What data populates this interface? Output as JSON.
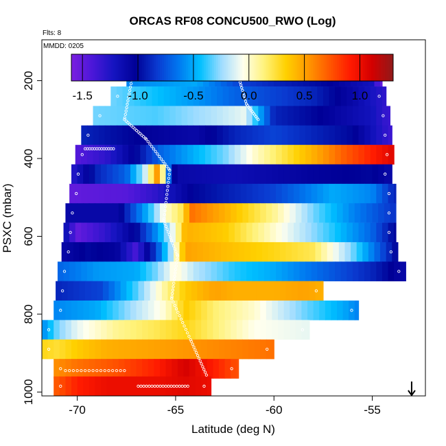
{
  "chart_data": {
    "type": "heatmap",
    "title": "ORCAS RF08 CONCU500_RWO (Log)",
    "flights_note": "Flts: 8",
    "date_note": "MMDD: 0205",
    "xlabel": "Latitude (deg N)",
    "ylabel": "PSXC (mbar)",
    "xlim": [
      -71.8,
      -52.3
    ],
    "ylim": [
      1010,
      95
    ],
    "y_reversed": true,
    "x_ticks": [
      -70,
      -65,
      -60,
      -55
    ],
    "x_tick_labels": [
      "-70",
      "-65",
      "-60",
      "-55"
    ],
    "y_ticks": [
      200,
      400,
      600,
      800,
      1000
    ],
    "y_tick_labels": [
      "200",
      "400",
      "600",
      "800",
      "1000"
    ],
    "colorbar": {
      "range": [
        -1.6,
        1.3
      ],
      "ticks": [
        -1.5,
        -1.0,
        -0.5,
        0.0,
        0.5,
        1.0
      ],
      "tick_labels": [
        "-1.5",
        "-1.0",
        "-0.5",
        "0.0",
        "0.5",
        "1.0"
      ],
      "colors": [
        "#7b1fe0",
        "#4a17d8",
        "#1414c0",
        "#000096",
        "#0a3ad0",
        "#0078f0",
        "#00c0ff",
        "#9fdcff",
        "#ffffee",
        "#fff27a",
        "#ffd000",
        "#ff9a00",
        "#ff5a00",
        "#ff1a00",
        "#d40000",
        "#901a1a"
      ]
    },
    "arrow_marker": {
      "x": -53.0,
      "direction": "down"
    },
    "bands": [
      {
        "p": 190,
        "xmin": -67.5,
        "xmax": -54.5,
        "stops": [
          [
            -67.5,
            -0.6
          ],
          [
            -64,
            -0.5
          ],
          [
            -61.8,
            -0.8
          ],
          [
            -60,
            -0.9
          ],
          [
            -57.5,
            -1.0
          ],
          [
            -55,
            -1.2
          ],
          [
            -54.6,
            -1.5
          ]
        ]
      },
      {
        "p": 240,
        "xmin": -68.3,
        "xmax": -54.3,
        "stops": [
          [
            -68.3,
            -0.3
          ],
          [
            -64,
            -0.55
          ],
          [
            -62,
            -0.7
          ],
          [
            -60,
            -0.8
          ],
          [
            -58,
            -0.9
          ],
          [
            -56,
            -1.1
          ],
          [
            -54.4,
            -1.3
          ]
        ]
      },
      {
        "p": 290,
        "xmin": -69.2,
        "xmax": -54.1,
        "stops": [
          [
            -69.2,
            -0.3
          ],
          [
            -66,
            -0.35
          ],
          [
            -63,
            -0.2
          ],
          [
            -61.5,
            -0.1
          ],
          [
            -60,
            -0.9
          ],
          [
            -58,
            -1.0
          ],
          [
            -55,
            -1.2
          ],
          [
            -54.2,
            -1.35
          ]
        ]
      },
      {
        "p": 340,
        "xmin": -69.8,
        "xmax": -54.0,
        "stops": [
          [
            -69.8,
            -0.9
          ],
          [
            -67.5,
            -1.0
          ],
          [
            -66,
            -1.05
          ],
          [
            -64,
            -1.1
          ],
          [
            -62,
            -0.9
          ],
          [
            -60,
            -0.8
          ],
          [
            -58,
            -0.9
          ],
          [
            -56,
            -1.0
          ],
          [
            -54.1,
            -1.35
          ]
        ]
      },
      {
        "p": 390,
        "xmin": -70.1,
        "xmax": -53.9,
        "stops": [
          [
            -70.1,
            -1.45
          ],
          [
            -68.5,
            -1.3
          ],
          [
            -67,
            -1.0
          ],
          [
            -65.8,
            -0.7
          ],
          [
            -64.2,
            -0.5
          ],
          [
            -62.5,
            -0.3
          ],
          [
            -61,
            0.0
          ],
          [
            -60,
            0.15
          ],
          [
            -58,
            0.45
          ],
          [
            -56.5,
            0.7
          ],
          [
            -55,
            0.9
          ],
          [
            -54,
            1.05
          ]
        ]
      },
      {
        "p": 440,
        "xmin": -70.3,
        "xmax": -54.0,
        "stops": [
          [
            -70.3,
            -1.3
          ],
          [
            -69,
            -0.9
          ],
          [
            -67.5,
            -0.7
          ],
          [
            -66.6,
            -0.2
          ],
          [
            -66.2,
            0.2
          ],
          [
            -65.8,
            0.7
          ],
          [
            -65.5,
            -0.5
          ],
          [
            -65,
            -1.1
          ],
          [
            -62,
            -1.15
          ],
          [
            -58,
            -1.05
          ],
          [
            -55,
            -1.0
          ],
          [
            -54.1,
            -1.1
          ]
        ]
      },
      {
        "p": 490,
        "xmin": -70.4,
        "xmax": -53.8,
        "stops": [
          [
            -70.4,
            -1.5
          ],
          [
            -67.5,
            -1.45
          ],
          [
            -66,
            -1.3
          ],
          [
            -64,
            -1.0
          ],
          [
            -60,
            -0.8
          ],
          [
            -57,
            -0.5
          ],
          [
            -55,
            -0.6
          ],
          [
            -53.9,
            -0.9
          ]
        ]
      },
      {
        "p": 540,
        "xmin": -70.6,
        "xmax": -53.8,
        "stops": [
          [
            -70.6,
            -1.1
          ],
          [
            -68,
            -1.1
          ],
          [
            -66.5,
            -0.5
          ],
          [
            -65.5,
            0.0
          ],
          [
            -64.7,
            0.2
          ],
          [
            -64.2,
            0.65
          ],
          [
            -62.5,
            0.45
          ],
          [
            -60,
            0.1
          ],
          [
            -58,
            -0.3
          ],
          [
            -56,
            -0.6
          ],
          [
            -53.9,
            -0.85
          ]
        ]
      },
      {
        "p": 590,
        "xmin": -70.7,
        "xmax": -53.8,
        "stops": [
          [
            -70.7,
            -1.1
          ],
          [
            -70,
            -1.5
          ],
          [
            -68.5,
            -1.3
          ],
          [
            -67,
            -1.0
          ],
          [
            -65.8,
            -0.5
          ],
          [
            -65,
            0.0
          ],
          [
            -64.5,
            0.45
          ],
          [
            -62.5,
            0.35
          ],
          [
            -60,
            0.0
          ],
          [
            -57,
            -0.4
          ],
          [
            -55,
            -0.7
          ],
          [
            -53.9,
            -1.0
          ]
        ]
      },
      {
        "p": 640,
        "xmin": -70.8,
        "xmax": -53.7,
        "stops": [
          [
            -70.8,
            -1.1
          ],
          [
            -69.5,
            -1.0
          ],
          [
            -68,
            -1.05
          ],
          [
            -67,
            -1.4
          ],
          [
            -66,
            -0.8
          ],
          [
            -65.2,
            -0.2
          ],
          [
            -64.5,
            0.5
          ],
          [
            -62.5,
            0.4
          ],
          [
            -60,
            0.3
          ],
          [
            -58,
            0.2
          ],
          [
            -56,
            -0.3
          ],
          [
            -53.8,
            -1.0
          ]
        ]
      },
      {
        "p": 690,
        "xmin": -71.0,
        "xmax": -53.3,
        "stops": [
          [
            -71.0,
            -0.7
          ],
          [
            -69,
            -0.55
          ],
          [
            -67,
            -0.5
          ],
          [
            -66,
            -0.3
          ],
          [
            -65,
            0.0
          ],
          [
            -64,
            -0.2
          ],
          [
            -62,
            -0.4
          ],
          [
            -60,
            -0.5
          ],
          [
            -57.5,
            -0.7
          ],
          [
            -55,
            -0.9
          ],
          [
            -53.4,
            -1.1
          ]
        ]
      },
      {
        "p": 740,
        "xmin": -71.1,
        "xmax": -57.5,
        "stops": [
          [
            -71.1,
            -0.9
          ],
          [
            -68.8,
            -0.8
          ],
          [
            -67,
            -0.35
          ],
          [
            -65.5,
            0.1
          ],
          [
            -64.5,
            0.35
          ],
          [
            -63,
            0.5
          ],
          [
            -62,
            0.45
          ],
          [
            -60,
            0.45
          ],
          [
            -58.5,
            0.5
          ],
          [
            -57.6,
            0.45
          ]
        ]
      },
      {
        "p": 790,
        "xmin": -71.2,
        "xmax": -55.7,
        "stops": [
          [
            -71.2,
            -0.6
          ],
          [
            -69,
            -0.5
          ],
          [
            -67,
            -0.2
          ],
          [
            -65.5,
            0.0
          ],
          [
            -64.5,
            0.35
          ],
          [
            -63,
            0.15
          ],
          [
            -61,
            0.0
          ],
          [
            -58.5,
            -0.3
          ],
          [
            -56.5,
            -0.5
          ],
          [
            -55.8,
            -0.6
          ]
        ]
      },
      {
        "p": 840,
        "xmin": -71.8,
        "xmax": -58.2,
        "stops": [
          [
            -71.8,
            -0.6
          ],
          [
            -71,
            -0.3
          ],
          [
            -70,
            -0.1
          ],
          [
            -68,
            0.1
          ],
          [
            -66,
            0.2
          ],
          [
            -64.5,
            0.3
          ],
          [
            -63,
            0.15
          ],
          [
            -61,
            -0.05
          ],
          [
            -58.3,
            -0.1
          ]
        ]
      },
      {
        "p": 890,
        "xmin": -71.8,
        "xmax": -60.0,
        "stops": [
          [
            -71.8,
            0.3
          ],
          [
            -71,
            0.25
          ],
          [
            -70,
            0.35
          ],
          [
            -68.5,
            0.45
          ],
          [
            -66,
            0.5
          ],
          [
            -64,
            0.55
          ],
          [
            -62,
            0.6
          ],
          [
            -60.1,
            0.65
          ]
        ]
      },
      {
        "p": 940,
        "xmin": -71.2,
        "xmax": -61.8,
        "stops": [
          [
            -71.2,
            0.55
          ],
          [
            -70,
            0.65
          ],
          [
            -68,
            0.75
          ],
          [
            -66,
            0.9
          ],
          [
            -64.5,
            1.1
          ],
          [
            -63,
            0.9
          ],
          [
            -61.9,
            0.75
          ]
        ]
      },
      {
        "p": 985,
        "xmin": -71.2,
        "xmax": -63.2,
        "stops": [
          [
            -71.2,
            0.7
          ],
          [
            -70,
            0.9
          ],
          [
            -68.5,
            1.0
          ],
          [
            -66,
            1.0
          ],
          [
            -64.5,
            1.05
          ],
          [
            -63.3,
            1.0
          ]
        ]
      }
    ]
  }
}
